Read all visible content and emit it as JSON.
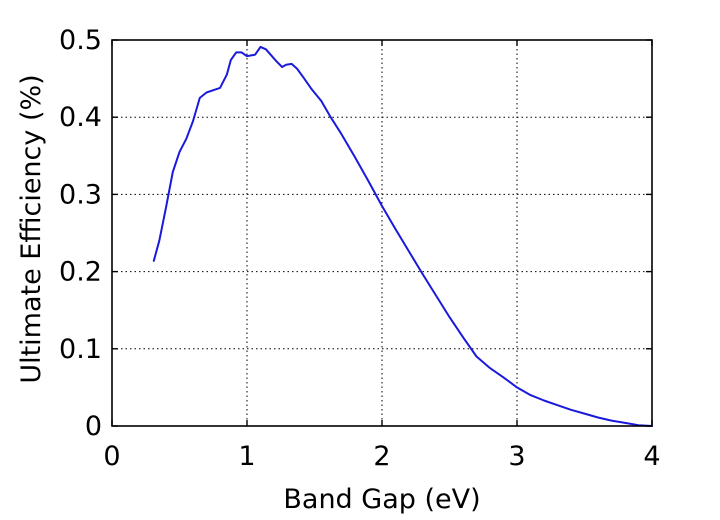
{
  "chart_data": {
    "type": "line",
    "title": "",
    "xlabel": "Band Gap (eV)",
    "ylabel": "Ultimate Efficiency (%)",
    "xlim": [
      0,
      4
    ],
    "ylim": [
      0,
      0.5
    ],
    "xticks": [
      0,
      1,
      2,
      3,
      4
    ],
    "xtick_labels": [
      "0",
      "1",
      "2",
      "3",
      "4"
    ],
    "yticks": [
      0,
      0.1,
      0.2,
      0.3,
      0.4,
      0.5
    ],
    "ytick_labels": [
      "0",
      "0.1",
      "0.2",
      "0.3",
      "0.4",
      "0.5"
    ],
    "grid": true,
    "grid_style": "dotted",
    "legend": false,
    "series": [
      {
        "color": "#1a1adc",
        "x": [
          0.31,
          0.35,
          0.4,
          0.45,
          0.5,
          0.55,
          0.6,
          0.65,
          0.7,
          0.75,
          0.8,
          0.85,
          0.88,
          0.92,
          0.96,
          1.0,
          1.03,
          1.06,
          1.1,
          1.14,
          1.18,
          1.22,
          1.26,
          1.29,
          1.33,
          1.37,
          1.42,
          1.48,
          1.55,
          1.62,
          1.7,
          1.8,
          1.9,
          2.0,
          2.1,
          2.2,
          2.3,
          2.4,
          2.5,
          2.6,
          2.7,
          2.8,
          2.9,
          3.0,
          3.1,
          3.2,
          3.3,
          3.4,
          3.5,
          3.6,
          3.7,
          3.8,
          3.9,
          4.0
        ],
        "y": [
          0.214,
          0.24,
          0.283,
          0.329,
          0.355,
          0.372,
          0.395,
          0.425,
          0.432,
          0.435,
          0.438,
          0.455,
          0.474,
          0.484,
          0.484,
          0.479,
          0.48,
          0.481,
          0.491,
          0.488,
          0.48,
          0.472,
          0.465,
          0.468,
          0.469,
          0.463,
          0.451,
          0.436,
          0.421,
          0.4,
          0.378,
          0.348,
          0.317,
          0.285,
          0.255,
          0.226,
          0.197,
          0.169,
          0.141,
          0.115,
          0.09,
          0.075,
          0.063,
          0.05,
          0.04,
          0.033,
          0.027,
          0.021,
          0.016,
          0.011,
          0.007,
          0.004,
          0.001,
          0.0
        ]
      }
    ]
  }
}
